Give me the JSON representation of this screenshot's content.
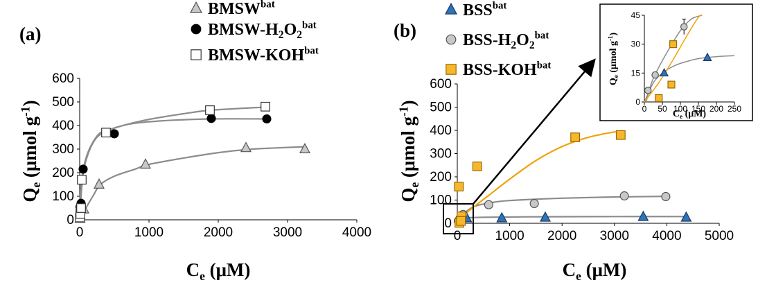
{
  "colors": {
    "fit_gray": "#8c8c8c",
    "fit_orange": "#f0a20a",
    "bss_blue": "#2e74b5",
    "koh_orange": "#f7b72a",
    "gray_fill": "#c8c8c8"
  },
  "chart_data": [
    {
      "panel": "(a)",
      "type": "scatter",
      "xlabel": {
        "main": "C",
        "sub": "e",
        "unit": " (μM)"
      },
      "ylabel": {
        "main": "Q",
        "sub": "e",
        "unit": " (μmol g",
        "sup": "-1",
        "close": ")"
      },
      "xlim": [
        0,
        4000
      ],
      "ylim": [
        0,
        600
      ],
      "xticks": [
        0,
        1000,
        2000,
        3000,
        4000
      ],
      "yticks": [
        0,
        100,
        200,
        300,
        400,
        500,
        600
      ],
      "legend_position": "top-right",
      "series": [
        {
          "name": {
            "base": "BMSW",
            "sup": "bat"
          },
          "marker": "triangle",
          "points": [
            [
              5,
              5
            ],
            [
              60,
              45
            ],
            [
              280,
              150
            ],
            [
              950,
              235
            ],
            [
              2400,
              305
            ],
            [
              3250,
              300
            ]
          ],
          "fit": [
            [
              0,
              0
            ],
            [
              100,
              55
            ],
            [
              200,
              105
            ],
            [
              300,
              150
            ],
            [
              500,
              185
            ],
            [
              800,
              215
            ],
            [
              1000,
              235
            ],
            [
              1500,
              262
            ],
            [
              2000,
              285
            ],
            [
              2500,
              300
            ],
            [
              3000,
              307
            ],
            [
              3250,
              310
            ]
          ]
        },
        {
          "name": {
            "base": "BMSW-H",
            "sub": "2",
            "mid": "O",
            "sub2": "2",
            "sup": "bat"
          },
          "marker": "circle",
          "points": [
            [
              5,
              55
            ],
            [
              20,
              70
            ],
            [
              50,
              215
            ],
            [
              500,
              365
            ],
            [
              1900,
              430
            ],
            [
              2700,
              428
            ]
          ],
          "fit": [
            [
              0,
              0
            ],
            [
              30,
              140
            ],
            [
              80,
              240
            ],
            [
              200,
              330
            ],
            [
              350,
              370
            ],
            [
              700,
              405
            ],
            [
              1200,
              420
            ],
            [
              1900,
              428
            ],
            [
              2700,
              428
            ]
          ]
        },
        {
          "name": {
            "base": "BMSW-KOH",
            "sup": "bat"
          },
          "marker": "square",
          "points": [
            [
              5,
              10
            ],
            [
              10,
              25
            ],
            [
              20,
              50
            ],
            [
              30,
              170
            ],
            [
              380,
              370
            ],
            [
              1880,
              465
            ],
            [
              2680,
              480
            ]
          ],
          "fit": [
            [
              0,
              0
            ],
            [
              20,
              150
            ],
            [
              100,
              270
            ],
            [
              250,
              355
            ],
            [
              400,
              380
            ],
            [
              900,
              420
            ],
            [
              1500,
              450
            ],
            [
              1900,
              465
            ],
            [
              2680,
              478
            ]
          ]
        }
      ]
    },
    {
      "panel": "(b)",
      "type": "scatter",
      "xlabel": {
        "main": "C",
        "sub": "e",
        "unit": " (μM)"
      },
      "ylabel": {
        "main": "Q",
        "sub": "e",
        "unit": " (μmol g",
        "sup": "-1",
        "close": ")"
      },
      "xlim": [
        0,
        5000
      ],
      "ylim": [
        0,
        600
      ],
      "xticks": [
        0,
        1000,
        2000,
        3000,
        4000,
        5000
      ],
      "yticks": [
        0,
        100,
        200,
        300,
        400,
        500,
        600
      ],
      "legend_position": "top-left",
      "series": [
        {
          "name": {
            "base": "BSS",
            "sup": "bat"
          },
          "marker": "triangle",
          "points": [
            [
              60,
              18
            ],
            [
              180,
              22
            ],
            [
              850,
              22
            ],
            [
              1680,
              25
            ],
            [
              3550,
              28
            ],
            [
              4370,
              25
            ]
          ],
          "fit": [
            [
              0,
              0
            ],
            [
              50,
              18
            ],
            [
              150,
              23
            ],
            [
              500,
              26
            ],
            [
              1500,
              28
            ],
            [
              3000,
              29
            ],
            [
              4400,
              29
            ]
          ]
        },
        {
          "name": {
            "base": "BSS-H",
            "sub": "2",
            "mid": "O",
            "sub2": "2",
            "sup": "bat"
          },
          "marker": "circle",
          "points": [
            [
              20,
              10
            ],
            [
              50,
              20
            ],
            [
              110,
              38
            ],
            [
              600,
              80
            ],
            [
              1470,
              85
            ],
            [
              3190,
              118
            ],
            [
              3980,
              115
            ]
          ],
          "fit": [
            [
              0,
              0
            ],
            [
              100,
              35
            ],
            [
              300,
              70
            ],
            [
              600,
              87
            ],
            [
              1000,
              98
            ],
            [
              2000,
              108
            ],
            [
              3000,
              113
            ],
            [
              4000,
              116
            ]
          ]
        },
        {
          "name": {
            "base": "BSS-KOH",
            "sup": "bat"
          },
          "marker": "square",
          "points": [
            [
              30,
              158
            ],
            [
              380,
              245
            ],
            [
              2250,
              370
            ],
            [
              3120,
              380
            ],
            [
              80,
              30
            ],
            [
              40,
              2
            ],
            [
              70,
              10
            ]
          ],
          "fit": [
            [
              0,
              0
            ],
            [
              200,
              50
            ],
            [
              600,
              120
            ],
            [
              1000,
              190
            ],
            [
              1500,
              270
            ],
            [
              2000,
              330
            ],
            [
              2500,
              370
            ],
            [
              3000,
              393
            ],
            [
              3150,
              395
            ]
          ]
        }
      ],
      "inset": {
        "xlim": [
          0,
          250
        ],
        "ylim": [
          0,
          45
        ],
        "xticks": [
          0,
          50,
          100,
          150,
          200,
          250
        ],
        "yticks": [
          0,
          15,
          30,
          45
        ],
        "xlabel": {
          "main": "C",
          "sub": "e",
          "unit": " (μM)"
        },
        "ylabel": {
          "main": "Q",
          "sub": "e",
          "unit": " (μmol g",
          "sup": "-1",
          "close": ")"
        },
        "series": [
          {
            "marker": "triangle",
            "points": [
              [
                55,
                15
              ],
              [
                175,
                23
              ]
            ],
            "fit": [
              [
                0,
                0
              ],
              [
                25,
                10
              ],
              [
                50,
                15
              ],
              [
                75,
                18
              ],
              [
                100,
                20
              ],
              [
                150,
                22.5
              ],
              [
                200,
                23.5
              ],
              [
                250,
                24
              ]
            ]
          },
          {
            "marker": "circle",
            "points": [
              [
                10,
                6
              ],
              [
                30,
                14
              ],
              [
                110,
                39
              ]
            ],
            "errorbar": {
              "x": 110,
              "y": 39,
              "err": 4
            },
            "fit": [
              [
                5,
                0
              ],
              [
                20,
                10
              ],
              [
                40,
                18
              ],
              [
                70,
                28
              ],
              [
                100,
                37
              ],
              [
                130,
                43
              ],
              [
                160,
                46
              ]
            ]
          },
          {
            "marker": "square",
            "points": [
              [
                40,
                2
              ],
              [
                75,
                9
              ],
              [
                80,
                30
              ]
            ],
            "fit": [
              [
                0,
                0
              ],
              [
                40,
                10
              ],
              [
                80,
                22
              ],
              [
                120,
                35
              ],
              [
                150,
                44
              ],
              [
                160,
                47
              ]
            ]
          }
        ]
      }
    }
  ]
}
